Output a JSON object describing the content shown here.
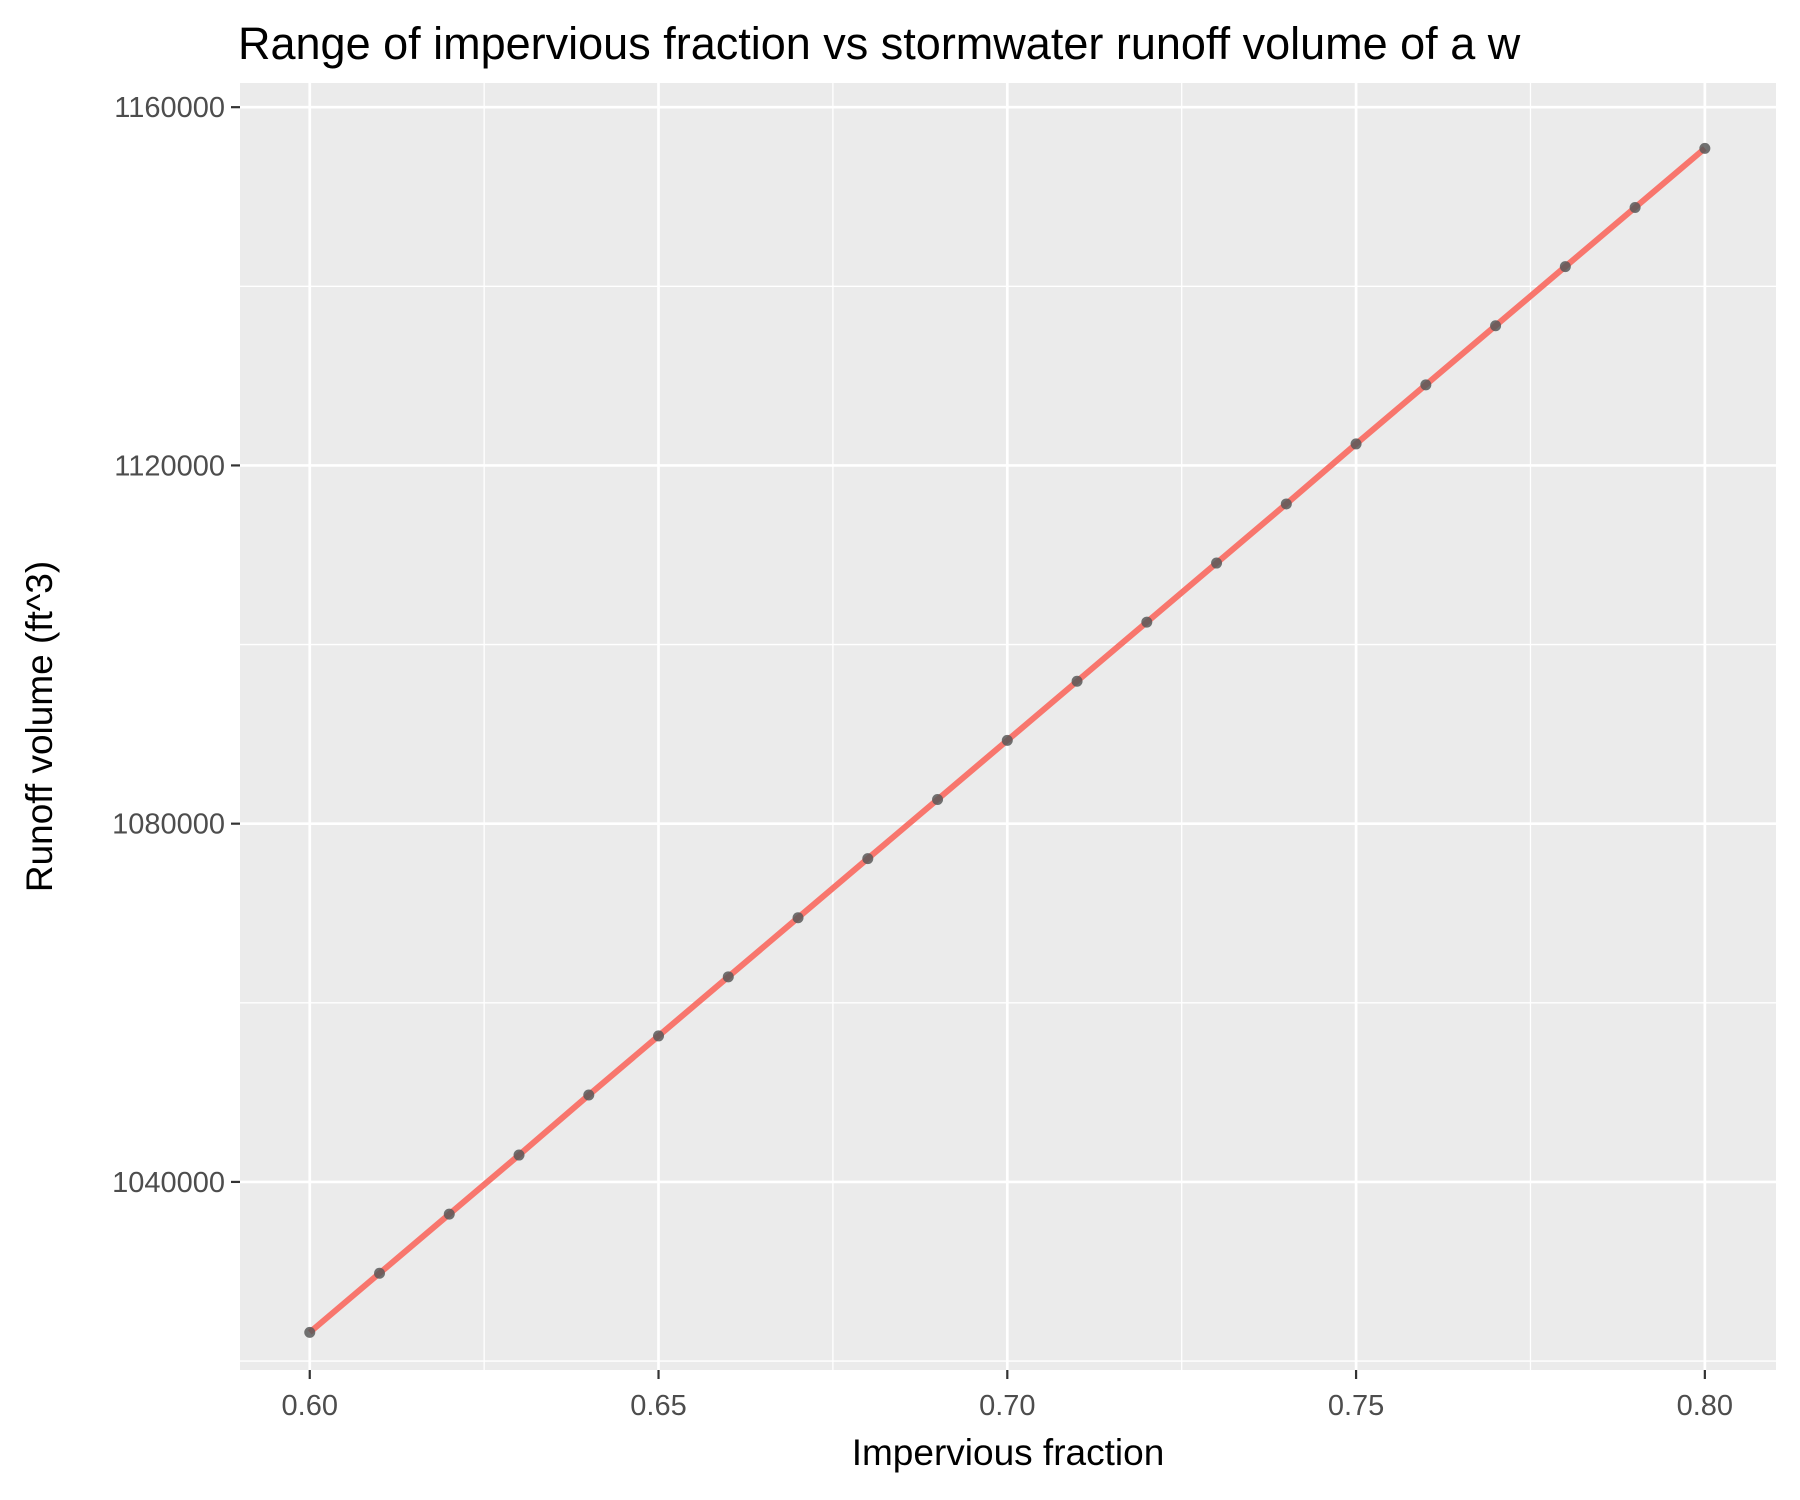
{
  "chart_data": {
    "type": "line",
    "title": "Range of impervious fraction vs stormwater runoff volume of a w",
    "xlabel": "Impervious fraction",
    "ylabel": "Runoff volume (ft^3)",
    "xlim": [
      0.59,
      0.8102
    ],
    "ylim": [
      1019000,
      1162700
    ],
    "x_ticks": [
      "0.60",
      "0.65",
      "0.70",
      "0.75",
      "0.80"
    ],
    "x_tick_values": [
      0.6,
      0.65,
      0.7,
      0.75,
      0.8
    ],
    "y_ticks": [
      "1040000",
      "1080000",
      "1120000",
      "1160000"
    ],
    "y_tick_values": [
      1040000,
      1080000,
      1120000,
      1160000
    ],
    "grid": true,
    "series": [
      {
        "color": "#F8766D",
        "point_color": "#595959",
        "x": [
          0.6,
          0.61,
          0.62,
          0.63,
          0.64,
          0.65,
          0.66,
          0.67,
          0.68,
          0.69,
          0.7,
          0.71,
          0.72,
          0.73,
          0.74,
          0.75,
          0.76,
          0.77,
          0.78,
          0.79,
          0.8
        ],
        "y": [
          1023200,
          1029800,
          1036400,
          1043000,
          1049700,
          1056300,
          1062900,
          1069500,
          1076100,
          1082700,
          1089300,
          1095900,
          1102500,
          1109100,
          1115700,
          1122400,
          1129000,
          1135600,
          1142200,
          1148800,
          1155400
        ]
      }
    ]
  }
}
